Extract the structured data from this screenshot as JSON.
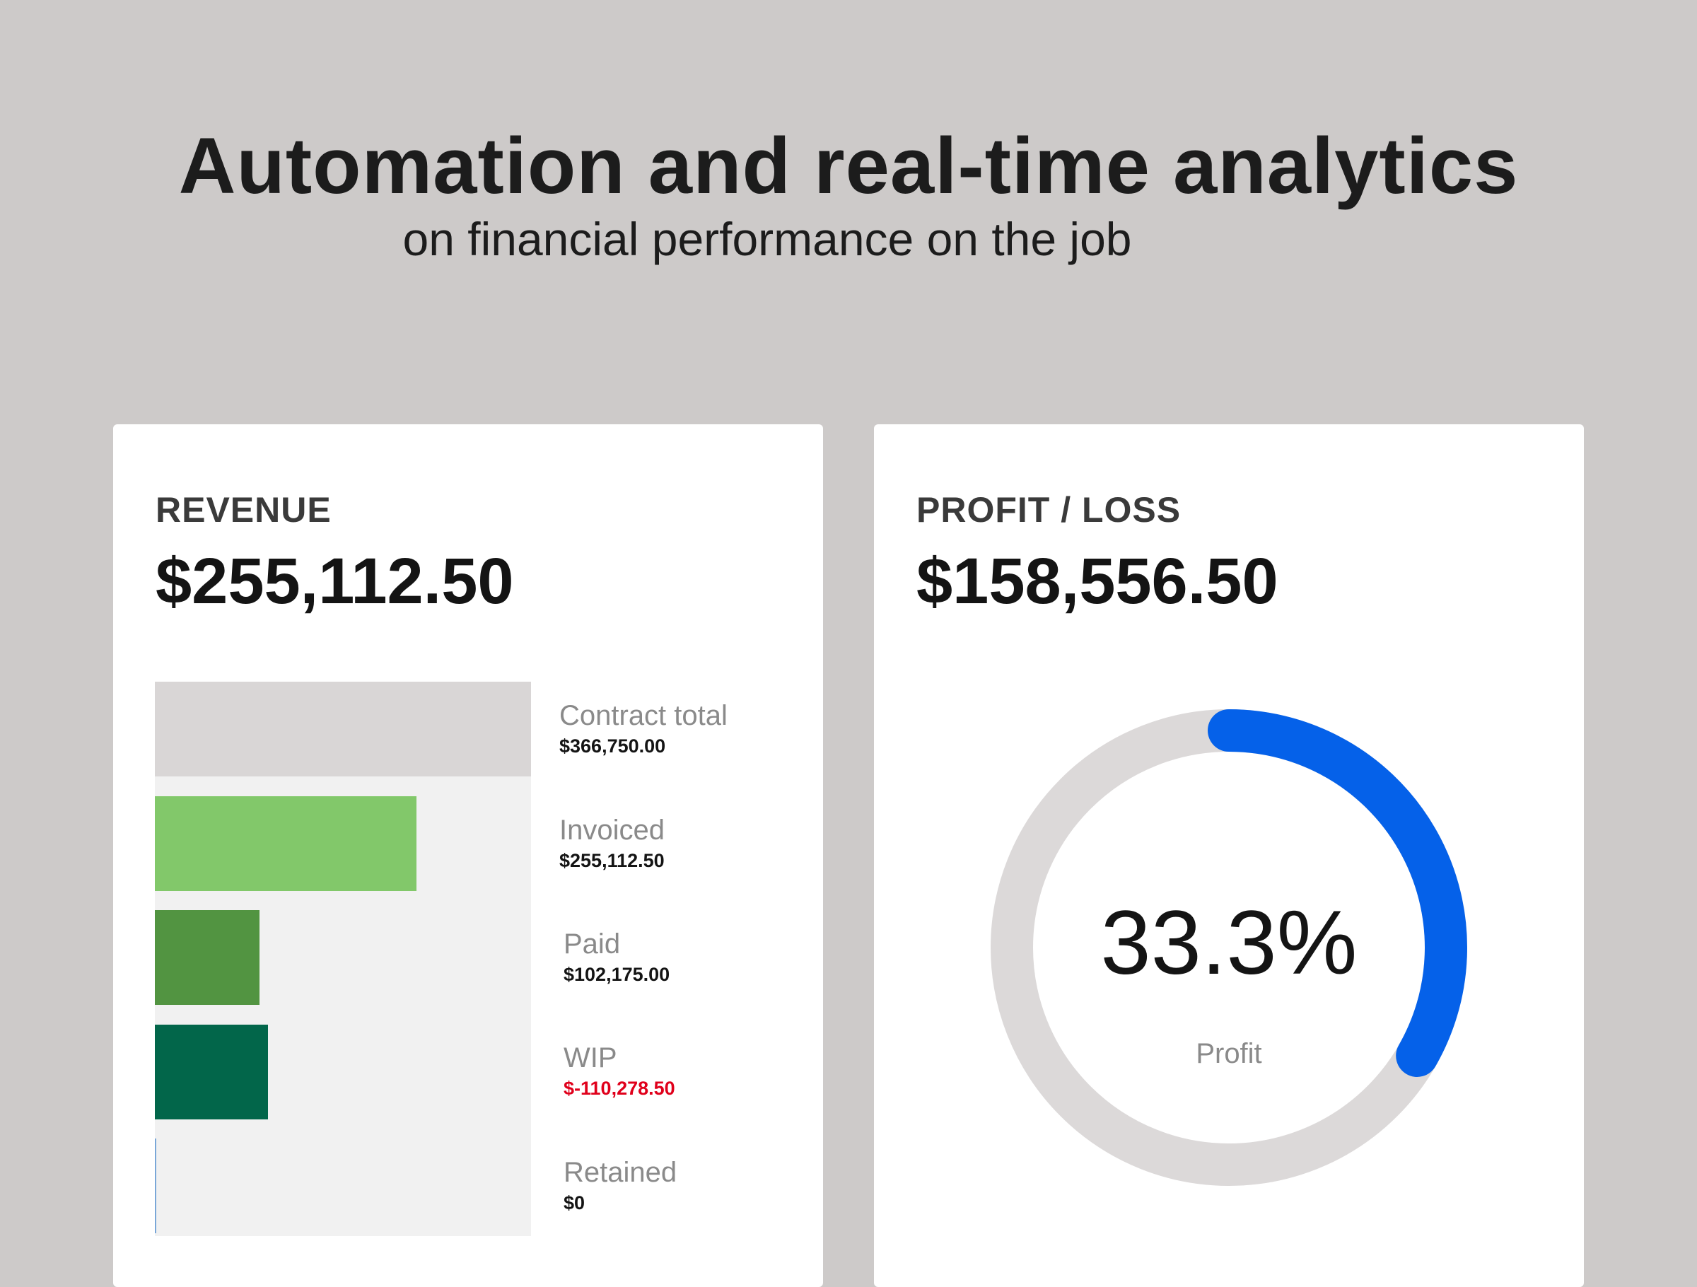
{
  "page": {
    "headline": "Automation and real-time analytics",
    "subheadline": "on financial performance on the job"
  },
  "revenue_card": {
    "label": "REVENUE",
    "value": "$255,112.50",
    "bars": [
      {
        "name": "contract-total",
        "label": "Contract total",
        "amount": "$366,750.00",
        "value": 366750.0,
        "color": "#d9d6d6",
        "negative": false
      },
      {
        "name": "invoiced",
        "label": "Invoiced",
        "amount": "$255,112.50",
        "value": 255112.5,
        "color": "#82c86a",
        "negative": false
      },
      {
        "name": "paid",
        "label": "Paid",
        "amount": "$102,175.00",
        "value": 102175.0,
        "color": "#529441",
        "negative": false
      },
      {
        "name": "wip",
        "label": "WIP",
        "amount": "$-110,278.50",
        "value": -110278.5,
        "color": "#02664a",
        "negative": true
      },
      {
        "name": "retained",
        "label": "Retained",
        "amount": "$0",
        "value": 0,
        "color": "#7aa7d8",
        "negative": false
      }
    ]
  },
  "profit_card": {
    "label": "PROFIT / LOSS",
    "value": "$158,556.50",
    "percent_label": "33.3%",
    "percent_value": 0.333,
    "caption": "Profit",
    "track_color": "#dcd9d9",
    "arc_color": "#0561e9"
  }
}
